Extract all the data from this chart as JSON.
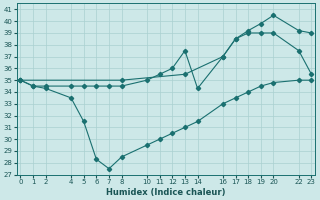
{
  "xlabel": "Humidex (Indice chaleur)",
  "bg_color": "#cde8e8",
  "grid_color": "#aad0d0",
  "line_color": "#1a7070",
  "ylim": [
    27,
    41.5
  ],
  "xlim": [
    -0.3,
    23.3
  ],
  "yticks": [
    27,
    28,
    29,
    30,
    31,
    32,
    33,
    34,
    35,
    36,
    37,
    38,
    39,
    40,
    41
  ],
  "xtick_positions": [
    0,
    1,
    2,
    4,
    5,
    6,
    7,
    8,
    10,
    11,
    12,
    13,
    14,
    16,
    17,
    18,
    19,
    20,
    22,
    23
  ],
  "xtick_labels": [
    "0",
    "1",
    "2",
    "4",
    "5",
    "6",
    "7",
    "8",
    "10",
    "11",
    "12",
    "13",
    "14",
    "16",
    "17",
    "18",
    "19",
    "20",
    "22",
    "23"
  ],
  "line1_x": [
    0,
    1,
    2,
    4,
    5,
    6,
    7,
    8,
    10,
    11,
    12,
    13,
    14,
    16,
    17,
    18,
    19,
    20,
    22,
    23
  ],
  "line1_y": [
    35.0,
    34.5,
    34.5,
    34.5,
    34.5,
    34.5,
    34.5,
    34.5,
    35.0,
    35.5,
    36.0,
    37.5,
    34.3,
    37.0,
    38.5,
    39.0,
    39.0,
    39.0,
    37.5,
    35.5
  ],
  "line2_x": [
    0,
    8,
    13,
    16,
    17,
    18,
    19,
    20,
    22,
    23
  ],
  "line2_y": [
    35.0,
    35.0,
    35.5,
    37.0,
    38.5,
    39.2,
    39.8,
    40.5,
    39.2,
    39.0
  ],
  "line3_x": [
    0,
    1,
    2,
    4,
    5,
    6,
    7,
    8,
    10,
    11,
    12,
    13,
    14,
    16,
    17,
    18,
    19,
    20,
    22,
    23
  ],
  "line3_y": [
    35.0,
    34.5,
    34.3,
    33.5,
    31.5,
    28.3,
    27.5,
    28.5,
    29.5,
    30.0,
    30.5,
    31.0,
    31.5,
    33.0,
    33.5,
    34.0,
    34.5,
    34.8,
    35.0,
    35.0
  ]
}
